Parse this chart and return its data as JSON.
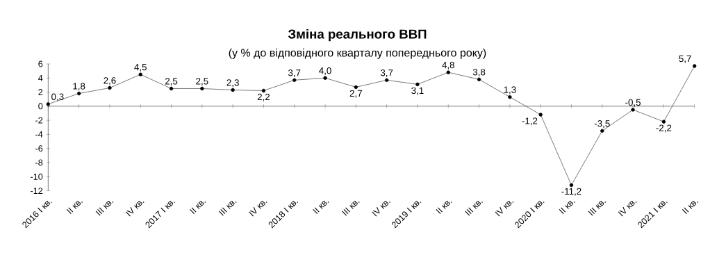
{
  "chart_data": {
    "type": "line",
    "title": "Зміна реального ВВП",
    "subtitle": "(у % до відповідного кварталу попереднього року)",
    "categories": [
      "2016 I кв.",
      "II кв.",
      "III кв.",
      "IV кв.",
      "2017 I кв.",
      "II кв.",
      "III кв.",
      "IV кв.",
      "2018 I кв.",
      "II кв.",
      "III кв.",
      "IV кв.",
      "2019 I кв.",
      "II кв.",
      "III кв.",
      "IV кв.",
      "2020 I кв.",
      "II кв.",
      "III кв.",
      "IV кв.",
      "2021 I кв.",
      "II кв."
    ],
    "series": [
      {
        "color": "#000000",
        "values": [
          0.3,
          1.8,
          2.6,
          4.5,
          2.5,
          2.5,
          2.3,
          2.2,
          3.7,
          4.0,
          2.7,
          3.7,
          3.1,
          4.8,
          3.8,
          1.3,
          -1.2,
          -11.2,
          -3.5,
          -0.5,
          -2.2,
          5.7
        ],
        "value_labels": [
          "0,3",
          "1,8",
          "2,6",
          "4,5",
          "2,5",
          "2,5",
          "2,3",
          "2,2",
          "3,7",
          "4,0",
          "2,7",
          "3,7",
          "3,1",
          "4,8",
          "3,8",
          "1,3",
          "-1,2",
          "-11,2",
          "-3,5",
          "-0,5",
          "-2,2",
          "5,7"
        ]
      }
    ],
    "ylim": [
      -12,
      6
    ],
    "yticks": [
      -12,
      -10,
      -8,
      -6,
      -4,
      -2,
      0,
      2,
      4,
      6
    ],
    "marker": "circle",
    "line_style": "solid"
  }
}
